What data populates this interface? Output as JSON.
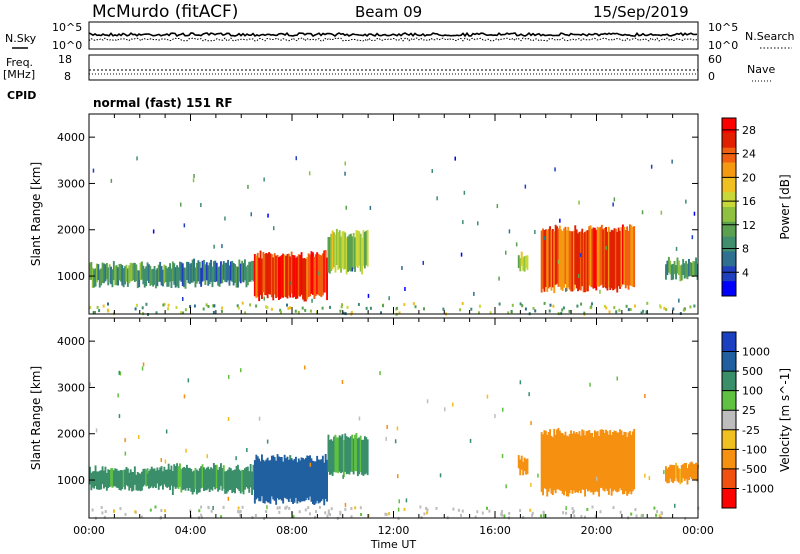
{
  "header": {
    "station": "McMurdo (fitACF)",
    "beam": "Beam 09",
    "date": "15/Sep/2019"
  },
  "top_panels": {
    "nsky_label": "N.Sky",
    "nsky_ticks": [
      "10^5",
      "10^0"
    ],
    "nsearch_label": "N.Search",
    "nsearch_ticks": [
      "10^5",
      "10^0"
    ],
    "freq_label_1": "Freq.",
    "freq_label_2": "[MHz]",
    "freq_ticks": [
      "18",
      "8"
    ],
    "nave_label": "Nave",
    "nave_ticks": [
      "60",
      "0"
    ],
    "cpid_label": "CPID",
    "cpid_text": "normal (fast) 151 RF"
  },
  "chart_data": [
    {
      "type": "heatmap",
      "name": "power",
      "xlabel": "",
      "ylabel": "Slant Range [km]",
      "x_ticks": [
        "00:00",
        "04:00",
        "08:00",
        "12:00",
        "16:00",
        "20:00",
        "00:00"
      ],
      "xlim": [
        0,
        24
      ],
      "y_ticks": [
        "1000",
        "2000",
        "3000",
        "4000"
      ],
      "ylim": [
        180,
        4500
      ],
      "colorbar": {
        "label": "Power [dB]",
        "ticks": [
          "4",
          "8",
          "12",
          "16",
          "20",
          "24",
          "28"
        ],
        "range": [
          0,
          30
        ],
        "colors": [
          "#0000ff",
          "#1f3fbf",
          "#2f6f8f",
          "#3f8f6f",
          "#5aa050",
          "#8fc040",
          "#c8d838",
          "#f0c020",
          "#f59a10",
          "#f06010",
          "#e02000",
          "#ff0000"
        ]
      },
      "echo_regions": [
        {
          "t0": 0.0,
          "t1": 3.1,
          "r_lo": 800,
          "r_hi": 1250,
          "power": 10
        },
        {
          "t0": 3.1,
          "t1": 6.5,
          "r_lo": 800,
          "r_hi": 1300,
          "power": 8
        },
        {
          "t0": 6.5,
          "t1": 9.4,
          "r_lo": 520,
          "r_hi": 1500,
          "power": 26
        },
        {
          "t0": 9.4,
          "t1": 11.0,
          "r_lo": 1100,
          "r_hi": 1950,
          "power": 14
        },
        {
          "t0": 16.9,
          "t1": 17.3,
          "r_lo": 1150,
          "r_hi": 1500,
          "power": 16
        },
        {
          "t0": 17.8,
          "t1": 21.5,
          "r_lo": 700,
          "r_hi": 2050,
          "power": 24
        },
        {
          "t0": 22.7,
          "t1": 24.0,
          "r_lo": 950,
          "r_hi": 1350,
          "power": 10
        }
      ]
    },
    {
      "type": "heatmap",
      "name": "velocity",
      "xlabel": "Time UT",
      "ylabel": "Slant Range [km]",
      "x_ticks": [
        "00:00",
        "04:00",
        "08:00",
        "12:00",
        "16:00",
        "20:00",
        "00:00"
      ],
      "xlim": [
        0,
        24
      ],
      "y_ticks": [
        "1000",
        "2000",
        "3000",
        "4000"
      ],
      "ylim": [
        180,
        4500
      ],
      "colorbar": {
        "label": "Velocity [m s^-1]",
        "ticks": [
          "1000",
          "500",
          "100",
          "25",
          "-25",
          "-100",
          "-500",
          "-1000"
        ],
        "colors": [
          "#1a3fc0",
          "#2060a0",
          "#3a8f6a",
          "#60c040",
          "#bdbdbd",
          "#f0c020",
          "#f59010",
          "#f05010",
          "#ff0000"
        ]
      },
      "echo_regions": [
        {
          "t0": 0.0,
          "t1": 3.1,
          "r_lo": 800,
          "r_hi": 1250,
          "velocity": 150
        },
        {
          "t0": 3.1,
          "t1": 6.5,
          "r_lo": 750,
          "r_hi": 1300,
          "velocity": 150
        },
        {
          "t0": 6.5,
          "t1": 9.4,
          "r_lo": 520,
          "r_hi": 1500,
          "velocity": 700
        },
        {
          "t0": 9.4,
          "t1": 11.0,
          "r_lo": 1100,
          "r_hi": 1950,
          "velocity": 120
        },
        {
          "t0": 16.9,
          "t1": 17.3,
          "r_lo": 1150,
          "r_hi": 1500,
          "velocity": -300
        },
        {
          "t0": 17.8,
          "t1": 21.5,
          "r_lo": 700,
          "r_hi": 2050,
          "velocity": -350
        },
        {
          "t0": 22.7,
          "t1": 24.0,
          "r_lo": 950,
          "r_hi": 1350,
          "velocity": -150
        }
      ]
    }
  ]
}
